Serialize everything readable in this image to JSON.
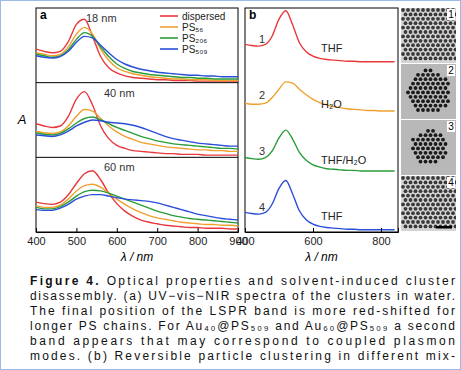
{
  "chart_data": [
    {
      "type": "line",
      "label": "a",
      "x_label": "λ / nm",
      "y_label": "A",
      "subplots": [
        "18 nm",
        "40 nm",
        "60 nm"
      ],
      "x": [
        400,
        420,
        440,
        460,
        480,
        500,
        520,
        540,
        560,
        580,
        600,
        620,
        640,
        660,
        680,
        700,
        720,
        740,
        760,
        780,
        800,
        820,
        840,
        860,
        880,
        900
      ],
      "xlim": [
        400,
        900
      ],
      "xticks": [
        400,
        500,
        600,
        700,
        800,
        900
      ],
      "ylim": [
        0,
        1
      ],
      "tick_labels": "x",
      "legend": "top-right",
      "series": [
        {
          "name": "dispersed",
          "color": "#e8383d",
          "values": [
            [
              0.45,
              0.42,
              0.4,
              0.42,
              0.55,
              0.78,
              0.85,
              0.62,
              0.35,
              0.2,
              0.13,
              0.09,
              0.07,
              0.06,
              0.05,
              0.04,
              0.04,
              0.03,
              0.03,
              0.03,
              0.02,
              0.02,
              0.02,
              0.02,
              0.02,
              0.02
            ],
            [
              0.45,
              0.42,
              0.4,
              0.42,
              0.55,
              0.78,
              0.88,
              0.7,
              0.42,
              0.25,
              0.16,
              0.12,
              0.09,
              0.08,
              0.07,
              0.06,
              0.05,
              0.05,
              0.04,
              0.04,
              0.04,
              0.03,
              0.03,
              0.03,
              0.03,
              0.03
            ],
            [
              0.4,
              0.38,
              0.37,
              0.4,
              0.5,
              0.65,
              0.78,
              0.82,
              0.7,
              0.52,
              0.38,
              0.28,
              0.21,
              0.16,
              0.13,
              0.11,
              0.09,
              0.08,
              0.07,
              0.06,
              0.06,
              0.05,
              0.05,
              0.05,
              0.04,
              0.04
            ]
          ]
        },
        {
          "name": "PS₅₆",
          "color": "#f0a030",
          "values": [
            [
              0.4,
              0.38,
              0.36,
              0.38,
              0.48,
              0.65,
              0.74,
              0.65,
              0.45,
              0.3,
              0.2,
              0.15,
              0.12,
              0.1,
              0.08,
              0.07,
              0.06,
              0.05,
              0.05,
              0.04,
              0.04,
              0.04,
              0.03,
              0.03,
              0.03,
              0.03
            ],
            [
              0.35,
              0.33,
              0.32,
              0.34,
              0.42,
              0.55,
              0.64,
              0.62,
              0.52,
              0.42,
              0.34,
              0.28,
              0.24,
              0.2,
              0.18,
              0.16,
              0.14,
              0.13,
              0.12,
              0.11,
              0.1,
              0.1,
              0.09,
              0.09,
              0.08,
              0.08
            ],
            [
              0.35,
              0.33,
              0.33,
              0.36,
              0.44,
              0.55,
              0.62,
              0.64,
              0.6,
              0.52,
              0.44,
              0.37,
              0.31,
              0.26,
              0.22,
              0.19,
              0.17,
              0.15,
              0.13,
              0.12,
              0.11,
              0.1,
              0.1,
              0.09,
              0.09,
              0.08
            ]
          ]
        },
        {
          "name": "PS₂₀₆",
          "color": "#2a9d3a",
          "values": [
            [
              0.38,
              0.36,
              0.34,
              0.36,
              0.44,
              0.58,
              0.67,
              0.62,
              0.48,
              0.35,
              0.25,
              0.19,
              0.15,
              0.13,
              0.11,
              0.1,
              0.09,
              0.08,
              0.07,
              0.07,
              0.06,
              0.06,
              0.05,
              0.05,
              0.05,
              0.05
            ],
            [
              0.33,
              0.31,
              0.3,
              0.32,
              0.38,
              0.46,
              0.52,
              0.54,
              0.5,
              0.45,
              0.4,
              0.36,
              0.32,
              0.28,
              0.25,
              0.22,
              0.2,
              0.18,
              0.17,
              0.16,
              0.15,
              0.14,
              0.13,
              0.12,
              0.12,
              0.11
            ],
            [
              0.33,
              0.31,
              0.31,
              0.34,
              0.4,
              0.48,
              0.54,
              0.56,
              0.55,
              0.52,
              0.48,
              0.44,
              0.4,
              0.36,
              0.32,
              0.28,
              0.25,
              0.22,
              0.2,
              0.18,
              0.17,
              0.16,
              0.15,
              0.14,
              0.13,
              0.12
            ]
          ]
        },
        {
          "name": "PS₅₀₉",
          "color": "#2a4fd8",
          "values": [
            [
              0.36,
              0.34,
              0.33,
              0.35,
              0.42,
              0.54,
              0.62,
              0.6,
              0.5,
              0.4,
              0.31,
              0.25,
              0.21,
              0.18,
              0.16,
              0.14,
              0.13,
              0.12,
              0.11,
              0.1,
              0.1,
              0.09,
              0.09,
              0.08,
              0.08,
              0.08
            ],
            [
              0.3,
              0.29,
              0.28,
              0.3,
              0.35,
              0.42,
              0.47,
              0.5,
              0.49,
              0.47,
              0.46,
              0.45,
              0.43,
              0.4,
              0.36,
              0.32,
              0.28,
              0.25,
              0.23,
              0.21,
              0.19,
              0.18,
              0.17,
              0.16,
              0.15,
              0.15
            ],
            [
              0.3,
              0.29,
              0.29,
              0.32,
              0.37,
              0.44,
              0.48,
              0.5,
              0.5,
              0.48,
              0.46,
              0.44,
              0.43,
              0.42,
              0.41,
              0.39,
              0.36,
              0.33,
              0.3,
              0.27,
              0.24,
              0.22,
              0.2,
              0.18,
              0.17,
              0.16
            ]
          ]
        }
      ]
    },
    {
      "type": "line",
      "label": "b",
      "x_label": "λ / nm",
      "x": [
        400,
        420,
        440,
        460,
        480,
        500,
        520,
        540,
        560,
        580,
        600,
        620,
        640,
        660,
        680,
        700,
        720,
        740,
        760,
        780,
        800,
        820,
        840
      ],
      "xlim": [
        400,
        850
      ],
      "xticks": [
        400,
        600,
        800
      ],
      "ylim": [
        0,
        1
      ],
      "tick_labels": "x",
      "series": [
        {
          "name": "1",
          "label": "THF",
          "color": "#e8383d",
          "values": [
            0.35,
            0.33,
            0.32,
            0.35,
            0.5,
            0.8,
            0.95,
            0.7,
            0.38,
            0.22,
            0.14,
            0.1,
            0.08,
            0.07,
            0.06,
            0.05,
            0.05,
            0.04,
            0.04,
            0.04,
            0.04,
            0.04,
            0.04
          ]
        },
        {
          "name": "2",
          "label": "H₂O",
          "color": "#f0a030",
          "values": [
            0.3,
            0.28,
            0.28,
            0.3,
            0.4,
            0.55,
            0.68,
            0.66,
            0.55,
            0.45,
            0.37,
            0.31,
            0.27,
            0.24,
            0.22,
            0.2,
            0.19,
            0.18,
            0.17,
            0.17,
            0.16,
            0.16,
            0.16
          ]
        },
        {
          "name": "3",
          "label": "THF/H₂O",
          "color": "#2a9d3a",
          "values": [
            0.33,
            0.31,
            0.3,
            0.33,
            0.45,
            0.68,
            0.82,
            0.66,
            0.42,
            0.28,
            0.2,
            0.16,
            0.13,
            0.12,
            0.11,
            0.1,
            0.1,
            0.09,
            0.09,
            0.09,
            0.09,
            0.09,
            0.09
          ]
        },
        {
          "name": "4",
          "label": "THF",
          "color": "#2a4fd8",
          "values": [
            0.35,
            0.33,
            0.32,
            0.35,
            0.5,
            0.78,
            0.92,
            0.68,
            0.38,
            0.22,
            0.14,
            0.1,
            0.08,
            0.07,
            0.06,
            0.05,
            0.05,
            0.04,
            0.04,
            0.04,
            0.04,
            0.04,
            0.04
          ]
        }
      ]
    }
  ],
  "micrographs": [
    "1",
    "2",
    "3",
    "4"
  ],
  "caption": {
    "label": "Figure 4.",
    "lines": [
      "Optical properties and solvent-induced cluster",
      "disassembly. (a) UV−vis−NIR spectra of the clusters in water.",
      "The final position of the LSPR band is more red-shifted for",
      "longer PS chains. For Au₄₀@PS₅₀₉ and Au₆₀@PS₅₀₉ a second",
      "band appears that may correspond to coupled plasmon",
      "modes. (b) Reversible particle clustering in different mix-"
    ]
  }
}
